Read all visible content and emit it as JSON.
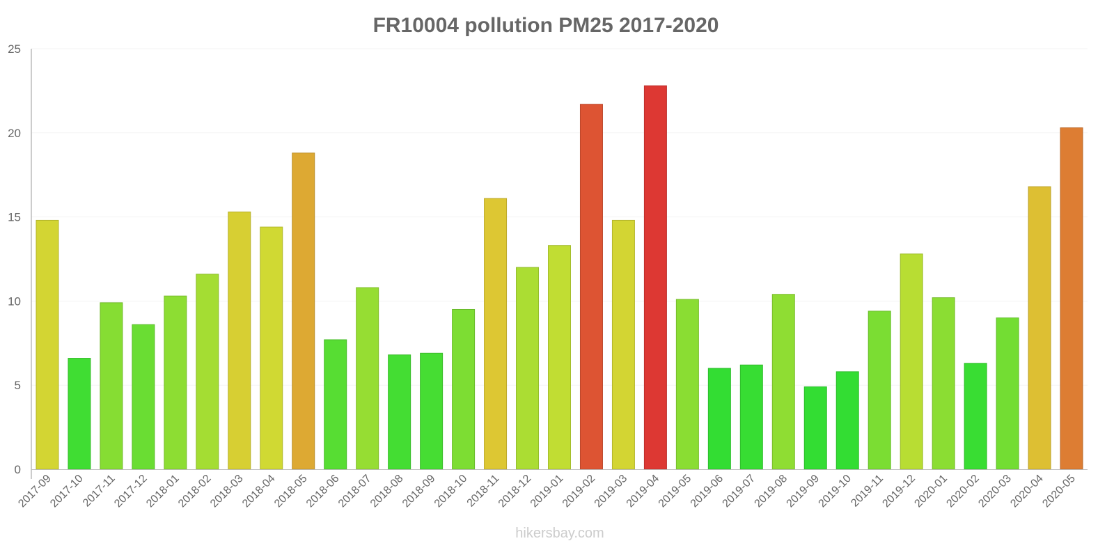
{
  "chart_data": {
    "type": "bar",
    "title": "FR10004 pollution PM25 2017-2020",
    "xlabel": "",
    "ylabel": "",
    "ylim": [
      0,
      25
    ],
    "yticks": [
      0,
      5,
      10,
      15,
      20,
      25
    ],
    "grid": true,
    "categories": [
      "2017-09",
      "2017-10",
      "2017-11",
      "2017-12",
      "2018-01",
      "2018-02",
      "2018-03",
      "2018-04",
      "2018-05",
      "2018-06",
      "2018-07",
      "2018-08",
      "2018-09",
      "2018-10",
      "2018-11",
      "2018-12",
      "2019-01",
      "2019-02",
      "2019-03",
      "2019-04",
      "2019-05",
      "2019-06",
      "2019-07",
      "2019-08",
      "2019-09",
      "2019-10",
      "2019-11",
      "2019-12",
      "2020-01",
      "2020-02",
      "2020-03",
      "2020-04",
      "2020-05"
    ],
    "values": [
      14.8,
      6.6,
      9.9,
      8.6,
      10.3,
      11.6,
      15.3,
      14.4,
      18.8,
      7.7,
      10.8,
      6.8,
      6.9,
      9.5,
      16.1,
      12.0,
      13.3,
      21.7,
      14.8,
      22.8,
      10.1,
      6.0,
      6.2,
      10.4,
      4.9,
      5.8,
      9.4,
      12.8,
      10.2,
      6.3,
      9.0,
      16.8,
      20.3
    ],
    "color_stops": [
      [
        6,
        "#33dd33"
      ],
      [
        10,
        "#88dd33"
      ],
      [
        14,
        "#cddd33"
      ],
      [
        16,
        "#ddc833"
      ],
      [
        19,
        "#dda733"
      ],
      [
        21,
        "#dd6633"
      ],
      [
        23,
        "#dd3333"
      ]
    ]
  },
  "watermark": "hikersbay.com"
}
